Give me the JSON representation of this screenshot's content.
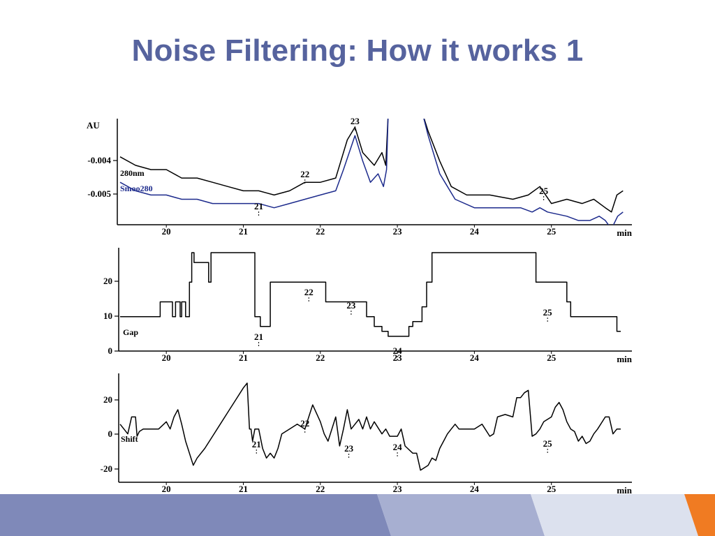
{
  "slide": {
    "title": "Noise Filtering: How it works 1"
  },
  "theme": {
    "title_color": "#56639e",
    "footer_colors": [
      "#7f89b9",
      "#a7afd1",
      "#dce1ee",
      "#f07b22"
    ]
  },
  "chart_data": [
    {
      "type": "line",
      "x_unit": "min",
      "y_unit": "AU",
      "xlim": [
        19.4,
        26.0
      ],
      "ylim": [
        -0.0058,
        -0.0033
      ],
      "x_ticks": [
        "20",
        "21",
        "22",
        "23",
        "24",
        "25"
      ],
      "y_ticks": [
        "-0.004",
        "-0.005"
      ],
      "annotations": [
        {
          "text": "23",
          "x": 22.45
        },
        {
          "text": "22",
          "x": 21.8
        },
        {
          "text": "21",
          "x": 21.2
        },
        {
          "text": "25",
          "x": 24.9
        }
      ],
      "series": [
        {
          "name": "280nm",
          "color": "#000000",
          "x": [
            19.4,
            19.6,
            19.8,
            20.0,
            20.2,
            20.4,
            20.6,
            20.8,
            21.0,
            21.2,
            21.4,
            21.6,
            21.8,
            22.0,
            22.2,
            22.35,
            22.45,
            22.55,
            22.7,
            22.8,
            22.85,
            22.88,
            23.33,
            23.4,
            23.55,
            23.7,
            23.9,
            24.2,
            24.5,
            24.7,
            24.85,
            25.0,
            25.2,
            25.4,
            25.55,
            25.7,
            25.78,
            25.85,
            25.93
          ],
          "y": [
            -0.0042,
            -0.0044,
            -0.0045,
            -0.0045,
            -0.0047,
            -0.0047,
            -0.0048,
            -0.0049,
            -0.005,
            -0.005,
            -0.0051,
            -0.005,
            -0.0048,
            -0.0048,
            -0.0047,
            -0.0038,
            -0.0035,
            -0.0041,
            -0.0044,
            -0.0041,
            -0.0044,
            -0.0032,
            -0.0032,
            -0.0036,
            -0.0043,
            -0.0049,
            -0.0051,
            -0.0051,
            -0.0052,
            -0.0051,
            -0.0049,
            -0.0053,
            -0.0052,
            -0.0053,
            -0.0052,
            -0.0054,
            -0.0055,
            -0.0051,
            -0.005
          ]
        },
        {
          "name": "Smoo280",
          "color": "#1c2a8c",
          "x": [
            19.4,
            19.6,
            19.8,
            20.0,
            20.2,
            20.4,
            20.6,
            20.8,
            21.0,
            21.2,
            21.4,
            21.6,
            21.8,
            22.0,
            22.2,
            22.3,
            22.45,
            22.55,
            22.65,
            22.75,
            22.82,
            22.86,
            22.88,
            23.33,
            23.4,
            23.55,
            23.75,
            24.0,
            24.3,
            24.6,
            24.75,
            24.85,
            24.95,
            25.2,
            25.35,
            25.5,
            25.62,
            25.7,
            25.78,
            25.86,
            25.93
          ],
          "y": [
            -0.0048,
            -0.005,
            -0.0051,
            -0.0051,
            -0.0052,
            -0.0052,
            -0.0053,
            -0.0053,
            -0.0053,
            -0.0053,
            -0.0054,
            -0.0053,
            -0.0052,
            -0.0051,
            -0.005,
            -0.0045,
            -0.0037,
            -0.0043,
            -0.0048,
            -0.0046,
            -0.0049,
            -0.0045,
            -0.0032,
            -0.0032,
            -0.0037,
            -0.0046,
            -0.0052,
            -0.0054,
            -0.0054,
            -0.0054,
            -0.0055,
            -0.0054,
            -0.0055,
            -0.0056,
            -0.0057,
            -0.0057,
            -0.0056,
            -0.0057,
            -0.0059,
            -0.0056,
            -0.0055
          ]
        }
      ]
    },
    {
      "type": "line",
      "x_unit": "min",
      "xlim": [
        19.4,
        26.0
      ],
      "ylim": [
        0,
        21
      ],
      "x_ticks": [
        "20",
        "21",
        "22",
        "23",
        "24",
        "25"
      ],
      "y_ticks": [
        "20",
        "10",
        "0"
      ],
      "annotations": [
        {
          "text": "22",
          "x": 21.85
        },
        {
          "text": "23",
          "x": 22.4
        },
        {
          "text": "21",
          "x": 21.2
        },
        {
          "text": "24",
          "x": 23.0
        },
        {
          "text": "25",
          "x": 24.95
        }
      ],
      "series": [
        {
          "name": "Gap",
          "color": "#000000",
          "x": [
            19.4,
            19.92,
            19.92,
            20.08,
            20.08,
            20.12,
            20.12,
            20.18,
            20.18,
            20.2,
            20.2,
            20.25,
            20.25,
            20.3,
            20.3,
            20.33,
            20.33,
            20.36,
            20.36,
            20.55,
            20.55,
            20.58,
            20.58,
            20.6,
            20.6,
            21.15,
            21.15,
            21.22,
            21.22,
            21.35,
            21.35,
            22.07,
            22.07,
            22.6,
            22.6,
            22.7,
            22.7,
            22.8,
            22.8,
            22.88,
            22.88,
            23.15,
            23.15,
            23.2,
            23.2,
            23.32,
            23.32,
            23.38,
            23.38,
            23.45,
            23.45,
            24.8,
            24.8,
            25.2,
            25.2,
            25.25,
            25.25,
            25.85,
            25.85,
            25.9
          ],
          "y": [
            7,
            7,
            10,
            10,
            7,
            7,
            10,
            10,
            7,
            7,
            10,
            10,
            7,
            7,
            14,
            14,
            20,
            20,
            18,
            18,
            14,
            14,
            20,
            20,
            20,
            20,
            7,
            7,
            5,
            5,
            14,
            14,
            10,
            10,
            7,
            7,
            5,
            5,
            4,
            4,
            3,
            3,
            5,
            5,
            6,
            6,
            9,
            9,
            14,
            14,
            20,
            20,
            14,
            14,
            10,
            10,
            7,
            7,
            4,
            4
          ]
        }
      ]
    },
    {
      "type": "line",
      "x_unit": "min",
      "xlim": [
        19.4,
        26.0
      ],
      "ylim": [
        -22,
        23
      ],
      "x_ticks": [
        "20",
        "21",
        "22",
        "23",
        "24",
        "25"
      ],
      "y_ticks": [
        "20",
        "0",
        "-20"
      ],
      "annotations": [
        {
          "text": "22",
          "x": 21.8
        },
        {
          "text": "21",
          "x": 21.17
        },
        {
          "text": "23",
          "x": 22.37
        },
        {
          "text": "24",
          "x": 23.0
        },
        {
          "text": "25",
          "x": 24.95
        }
      ],
      "series": [
        {
          "name": "Shift",
          "color": "#000000",
          "x": [
            19.4,
            19.5,
            19.55,
            19.6,
            19.62,
            19.65,
            19.7,
            19.8,
            19.9,
            20.0,
            20.05,
            20.1,
            20.15,
            20.2,
            20.25,
            20.3,
            20.35,
            20.4,
            20.5,
            20.6,
            20.7,
            20.8,
            20.9,
            21.0,
            21.05,
            21.08,
            21.1,
            21.12,
            21.15,
            21.2,
            21.25,
            21.3,
            21.35,
            21.4,
            21.45,
            21.5,
            21.6,
            21.7,
            21.8,
            21.85,
            21.9,
            22.0,
            22.05,
            22.1,
            22.2,
            22.25,
            22.3,
            22.35,
            22.4,
            22.5,
            22.55,
            22.6,
            22.65,
            22.7,
            22.8,
            22.85,
            22.9,
            23.0,
            23.05,
            23.1,
            23.2,
            23.25,
            23.3,
            23.4,
            23.45,
            23.5,
            23.55,
            23.6,
            23.65,
            23.7,
            23.75,
            23.8,
            23.9,
            24.0,
            24.1,
            24.2,
            24.25,
            24.3,
            24.4,
            24.5,
            24.55,
            24.6,
            24.65,
            24.7,
            24.75,
            24.8,
            24.85,
            24.9,
            25.0,
            25.05,
            25.1,
            25.15,
            25.2,
            25.25,
            25.3,
            25.35,
            25.4,
            25.45,
            25.5,
            25.55,
            25.6,
            25.7,
            25.75,
            25.8,
            25.85,
            25.88,
            25.9
          ],
          "y": [
            2,
            -2,
            5,
            5,
            -3,
            -1,
            0,
            0,
            0,
            3,
            0,
            5,
            8,
            2,
            -5,
            -10,
            -15,
            -12,
            -8,
            -3,
            2,
            7,
            12,
            17,
            19,
            0,
            0,
            -5,
            0,
            0,
            -8,
            -12,
            -10,
            -12,
            -8,
            -2,
            0,
            2,
            0,
            5,
            10,
            3,
            -2,
            -5,
            5,
            -7,
            0,
            8,
            0,
            4,
            0,
            5,
            0,
            3,
            -2,
            0,
            -3,
            -3,
            0,
            -7,
            -10,
            -10,
            -17,
            -15,
            -12,
            -13,
            -8,
            -5,
            -2,
            0,
            2,
            0,
            0,
            0,
            2,
            -3,
            -2,
            5,
            6,
            5,
            13,
            13,
            15,
            16,
            -3,
            -2,
            0,
            3,
            5,
            9,
            11,
            8,
            3,
            0,
            -1,
            -5,
            -3,
            -6,
            -5,
            -2,
            0,
            5,
            5,
            -2,
            0,
            0,
            0
          ]
        }
      ]
    }
  ]
}
